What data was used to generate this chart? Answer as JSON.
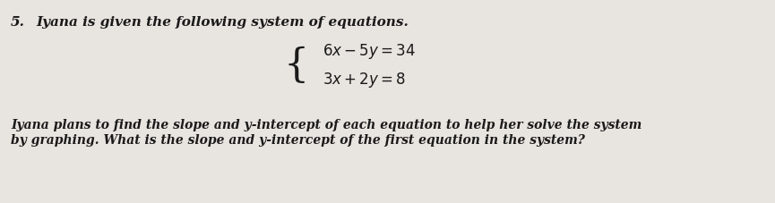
{
  "question_number": "5.",
  "title_text": "Iyana is given the following system of equations.",
  "eq1": "$6x - 5y = 34$",
  "eq2": "$3x + 2y = 8$",
  "body_line1": "Iyana plans to find the slope and y-intercept of each equation to help her solve the system",
  "body_line2": "by graphing. What is the slope and y-intercept of the first equation in the system?",
  "bg_color": "#e8e4df",
  "text_color": "#1a1a1a",
  "font_size_number": 11,
  "font_size_title": 11,
  "font_size_eq": 12,
  "font_size_brace": 32,
  "font_size_body": 10
}
